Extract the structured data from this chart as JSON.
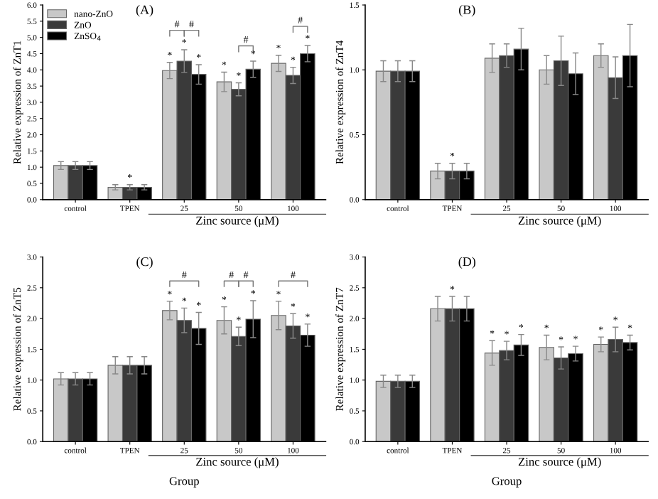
{
  "chart_data": [
    {
      "type": "bar",
      "title": "(A)",
      "ylabel": "Relative expression of ZnT1",
      "categories": [
        "control",
        "TPEN",
        "25",
        "50",
        "100"
      ],
      "ylim": [
        0,
        6.0
      ],
      "yticks": [
        {
          "value": 0,
          "label": "0.0"
        },
        0.5,
        {
          "value": 1,
          "label": "1.0"
        },
        1.5,
        {
          "value": 2,
          "label": "2.0"
        },
        2.5,
        {
          "value": 3,
          "label": "3.0"
        },
        3.5,
        {
          "value": 4,
          "label": "4.0"
        },
        4.5,
        {
          "value": 5,
          "label": "5.0"
        },
        5.5,
        {
          "value": 6,
          "label": "6.0"
        }
      ],
      "legend": "top left",
      "series": [
        {
          "name": "nano-ZnO",
          "color": "#c8c8c8",
          "values": [
            1.05,
            0.38,
            3.98,
            3.63,
            4.2
          ],
          "errors": [
            0.12,
            0.08,
            0.25,
            0.3,
            0.25
          ],
          "value_labels": [
            null,
            null,
            "*",
            "*",
            "*"
          ]
        },
        {
          "name": "ZnO",
          "color": "#3a3a3a",
          "values": [
            1.05,
            0.38,
            4.27,
            3.4,
            3.83
          ],
          "errors": [
            0.12,
            0.08,
            0.35,
            0.2,
            0.25
          ],
          "value_labels": [
            null,
            "*",
            "*",
            "*",
            "*"
          ]
        },
        {
          "name": "ZnSO$_{4}$",
          "color": "#000000",
          "values": [
            1.05,
            0.38,
            3.86,
            4.02,
            4.5
          ],
          "errors": [
            0.12,
            0.08,
            0.3,
            0.25,
            0.25
          ],
          "value_labels": [
            null,
            null,
            "*",
            "*",
            "*"
          ]
        }
      ],
      "annotations": [
        "Zinc source (μM)",
        "#",
        "#",
        "#",
        "#"
      ]
    },
    {
      "type": "bar",
      "title": "(B)",
      "ylabel": "Relative expression of ZnT4",
      "categories": [
        "control",
        "TPEN",
        "25",
        "50",
        "100"
      ],
      "ylim": [
        0,
        1.5
      ],
      "yticks": [
        {
          "value": 0,
          "label": "0.0"
        },
        0.5,
        {
          "value": 1,
          "label": "1.0"
        },
        1.5
      ],
      "series": [
        {
          "color": "#c8c8c8",
          "values": [
            0.99,
            0.22,
            1.09,
            1.0,
            1.11
          ],
          "errors": [
            0.08,
            0.06,
            0.11,
            0.11,
            0.09
          ]
        },
        {
          "color": "#3a3a3a",
          "values": [
            0.99,
            0.22,
            1.11,
            1.07,
            0.94
          ],
          "errors": [
            0.08,
            0.06,
            0.09,
            0.19,
            0.16
          ],
          "value_labels": [
            null,
            "*",
            null,
            null,
            null
          ]
        },
        {
          "color": "#000000",
          "values": [
            0.99,
            0.22,
            1.16,
            0.97,
            1.11
          ],
          "errors": [
            0.08,
            0.06,
            0.16,
            0.16,
            0.24
          ]
        }
      ],
      "annotations": [
        "Zinc source (μM)"
      ]
    },
    {
      "type": "bar",
      "title": "(C)",
      "ylabel": "Relative expression of ZnT5",
      "xlabel": "Group",
      "categories": [
        "control",
        "TPEN",
        "25",
        "50",
        "100"
      ],
      "ylim": [
        0,
        3.0
      ],
      "yticks": [
        {
          "value": 0,
          "label": "0.0"
        },
        0.5,
        {
          "value": 1,
          "label": "1.0"
        },
        1.5,
        {
          "value": 2,
          "label": "2.0"
        },
        2.5,
        {
          "value": 3,
          "label": "3.0"
        }
      ],
      "series": [
        {
          "color": "#c8c8c8",
          "values": [
            1.02,
            1.24,
            2.13,
            1.97,
            2.05
          ],
          "errors": [
            0.1,
            0.14,
            0.15,
            0.22,
            0.23
          ],
          "value_labels": [
            null,
            null,
            "*",
            "*",
            "*"
          ]
        },
        {
          "color": "#3a3a3a",
          "values": [
            1.02,
            1.24,
            1.97,
            1.71,
            1.88
          ],
          "errors": [
            0.1,
            0.14,
            0.2,
            0.15,
            0.2
          ],
          "value_labels": [
            null,
            null,
            "*",
            "*",
            "*"
          ]
        },
        {
          "color": "#000000",
          "values": [
            1.02,
            1.24,
            1.84,
            1.99,
            1.73
          ],
          "errors": [
            0.1,
            0.14,
            0.26,
            0.3,
            0.18
          ],
          "value_labels": [
            null,
            null,
            "*",
            "*",
            "*"
          ]
        }
      ],
      "annotations": [
        "Zinc source (μM)",
        "#",
        "#",
        "#",
        "#"
      ]
    },
    {
      "type": "bar",
      "title": "(D)",
      "ylabel": "Relative expression of ZnT7",
      "xlabel": "Group",
      "categories": [
        "control",
        "TPEN",
        "25",
        "50",
        "100"
      ],
      "ylim": [
        0,
        3.0
      ],
      "yticks": [
        {
          "value": 0,
          "label": "0.0"
        },
        0.5,
        {
          "value": 1,
          "label": "1.0"
        },
        1.5,
        {
          "value": 2,
          "label": "2.0"
        },
        2.5,
        {
          "value": 3,
          "label": "3.0"
        }
      ],
      "series": [
        {
          "color": "#c8c8c8",
          "values": [
            0.98,
            2.16,
            1.44,
            1.53,
            1.58
          ],
          "errors": [
            0.1,
            0.2,
            0.2,
            0.2,
            0.12
          ],
          "value_labels": [
            null,
            null,
            "*",
            "*",
            "*"
          ]
        },
        {
          "color": "#3a3a3a",
          "values": [
            0.98,
            2.16,
            1.48,
            1.36,
            1.66
          ],
          "errors": [
            0.1,
            0.2,
            0.15,
            0.18,
            0.2
          ],
          "value_labels": [
            null,
            "*",
            "*",
            "*",
            "*"
          ]
        },
        {
          "color": "#000000",
          "values": [
            0.98,
            2.16,
            1.57,
            1.43,
            1.61
          ],
          "errors": [
            0.1,
            0.2,
            0.17,
            0.12,
            0.12
          ],
          "value_labels": [
            null,
            null,
            "*",
            "*",
            "*"
          ]
        }
      ],
      "annotations": [
        "Zinc source (μM)"
      ]
    }
  ]
}
